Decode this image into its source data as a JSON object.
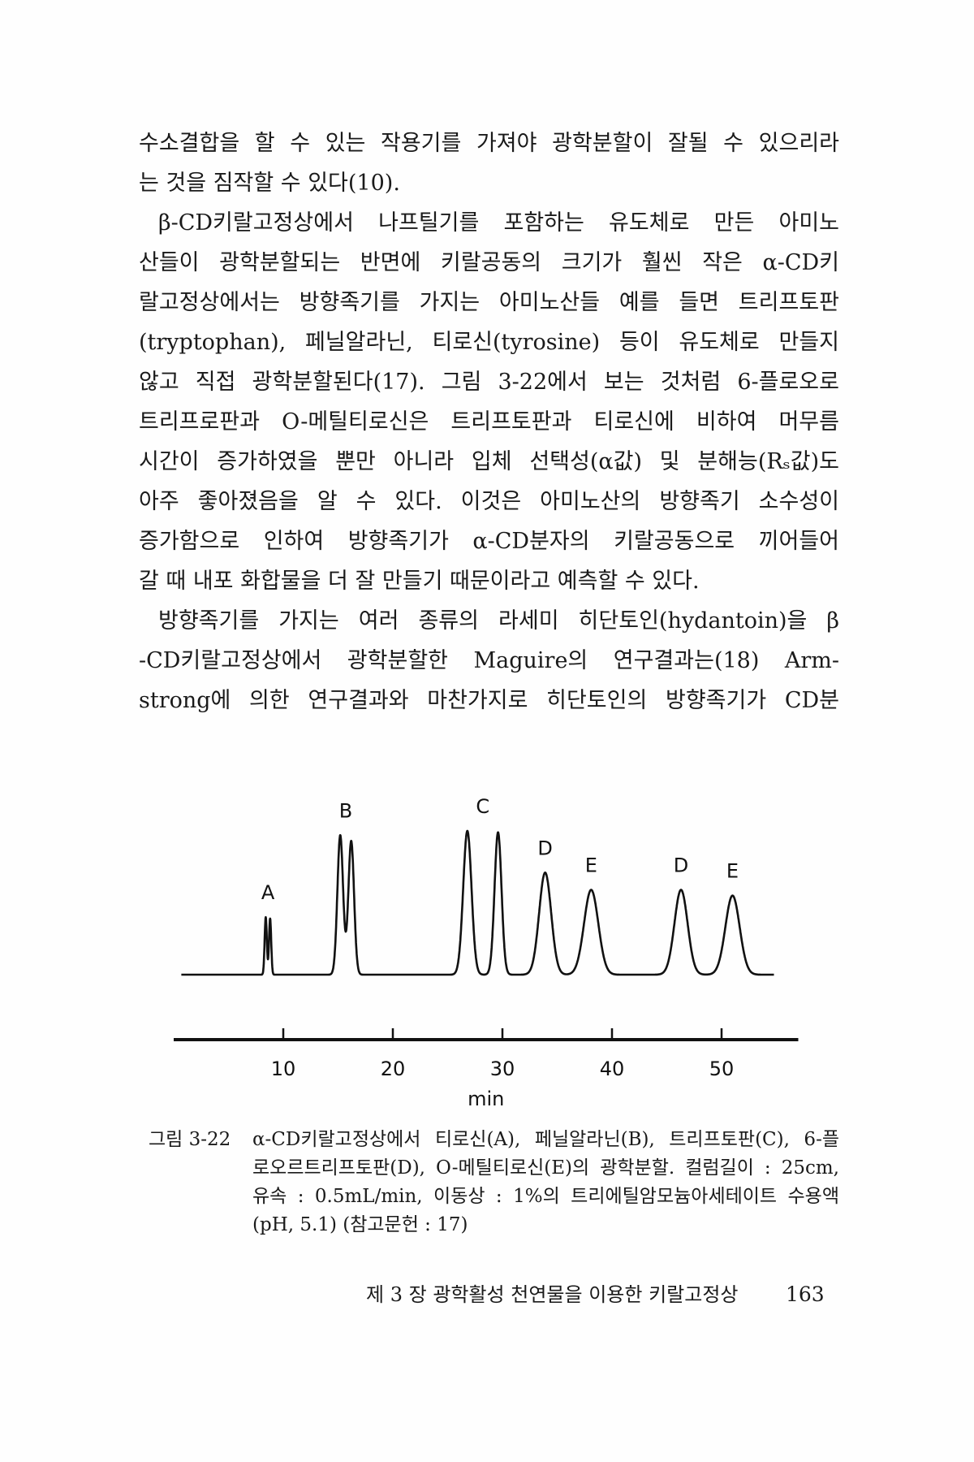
{
  "body_text": [
    "수소결합을 할 수 있는 작용기를 가져야 광학분할이 잘될 수 있으리라",
    "는 것을 짐작할 수 있다(10).",
    "β-CD키랄고정상에서 나프틸기를 포함하는 유도체로 만든 아미노",
    "산들이 광학분할되는 반면에 키랄공동의 크기가 훨씬 작은 α-CD키",
    "랄고정상에서는 방향족기를 가지는 아미노산들 예를 들면 트리프토판",
    "(tryptophan), 페닐알라닌, 티로신(tyrosine) 등이 유도체로 만들지",
    "않고 직접 광학분할된다(17). 그림 3-22에서 보는 것처럼 6-플로오로",
    "트리프로판과 O-메틸티로신은 트리프토판과 티로신에 비하여 머무름",
    "시간이 증가하였을 뿐만 아니라 입체 선택성(α값) 및 분해능(Rₛ값)도",
    "아주 좋아졌음을 알 수 있다. 이것은 아미노산의 방향족기 소수성이",
    "증가함으로 인하여 방향족기가 α-CD분자의 키랄공동으로 끼어들어",
    "갈 때 내포 화합물을 더 잘 만들기 때문이라고 예측할 수 있다.",
    "방향족기를 가지는 여러 종류의 라세미 히단토인(hydantoin)을 β",
    "-CD키랄고정상에서 광학분할한 Maguire의 연구결과는(18) Arm-",
    "strong에 의한 연구결과와 마찬가지로 히단토인의 방향족기가 CD분"
  ],
  "chart_data": {
    "type": "line",
    "title": "",
    "xlabel": "min",
    "ylabel": "",
    "xticks": [
      10,
      20,
      30,
      40,
      50
    ],
    "xlim": [
      0,
      57
    ],
    "grid": false,
    "x_range_trace": [
      0.7,
      54.8
    ],
    "peaks": [
      {
        "label": "A",
        "components": [
          {
            "t": 8.4,
            "h": 0.4,
            "w": 0.1
          },
          {
            "t": 8.8,
            "h": 0.39,
            "w": 0.1
          }
        ]
      },
      {
        "label": "B",
        "components": [
          {
            "t": 15.2,
            "h": 0.97,
            "w": 0.26
          },
          {
            "t": 16.2,
            "h": 0.93,
            "w": 0.26
          }
        ]
      },
      {
        "label": "C",
        "components": [
          {
            "t": 26.8,
            "h": 1.0,
            "w": 0.38
          },
          {
            "t": 29.6,
            "h": 0.99,
            "w": 0.32
          }
        ]
      },
      {
        "label": "D",
        "components": [
          {
            "t": 33.9,
            "h": 0.71,
            "w": 0.55
          }
        ]
      },
      {
        "label": "E",
        "components": [
          {
            "t": 38.1,
            "h": 0.59,
            "w": 0.65
          }
        ]
      },
      {
        "label": "D",
        "components": [
          {
            "t": 46.3,
            "h": 0.59,
            "w": 0.6
          }
        ]
      },
      {
        "label": "E",
        "components": [
          {
            "t": 51.0,
            "h": 0.55,
            "w": 0.65
          }
        ]
      }
    ],
    "line_color": "#111111"
  },
  "caption": {
    "label": "그림 3-22",
    "lines": [
      "α-CD키랄고정상에서 티로신(A), 페닐알라닌(B), 트리프토판(C), 6-플",
      "로오르트리프토판(D), O-메틸티로신(E)의 광학분할. 컬럼길이 : 25cm,",
      "유속 : 0.5mL/min, 이동상 : 1%의 트리에틸암모늄아세테이트 수용액",
      "(pH, 5.1) (참고문헌 : 17)"
    ]
  },
  "footer": {
    "running_head": "제 3 장  광학활성 천연물을 이용한 키랄고정상",
    "page_number": "163"
  }
}
